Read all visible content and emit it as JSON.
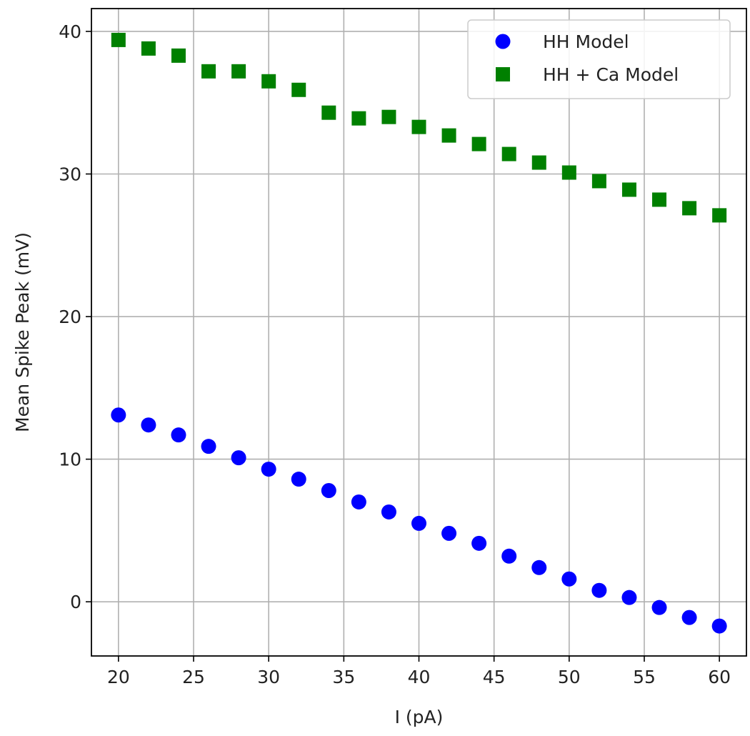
{
  "chart_data": {
    "type": "scatter",
    "title": "",
    "xlabel": "I (pA)",
    "ylabel": "Mean Spike Peak (mV)",
    "xlim": [
      18.2,
      61.8
    ],
    "ylim": [
      -3.8,
      41.6
    ],
    "xticks": [
      20,
      25,
      30,
      35,
      40,
      45,
      50,
      55,
      60
    ],
    "yticks": [
      0,
      10,
      20,
      30,
      40
    ],
    "grid": true,
    "legend_position": "top-right",
    "x": [
      20,
      22,
      24,
      26,
      28,
      30,
      32,
      34,
      36,
      38,
      40,
      42,
      44,
      46,
      48,
      50,
      52,
      54,
      56,
      58,
      60
    ],
    "series": [
      {
        "name": "HH Model",
        "marker": "circle",
        "color": "#0000ff",
        "values": [
          13.1,
          12.4,
          11.7,
          10.9,
          10.1,
          9.3,
          8.6,
          7.8,
          7.0,
          6.3,
          5.5,
          4.8,
          4.1,
          3.2,
          2.4,
          1.6,
          0.8,
          0.3,
          -0.4,
          -1.1,
          -1.7
        ]
      },
      {
        "name": "HH + Ca Model",
        "marker": "square",
        "color": "#008000",
        "values": [
          39.4,
          38.8,
          38.3,
          37.2,
          37.2,
          36.5,
          35.9,
          34.3,
          33.9,
          34.0,
          33.3,
          32.7,
          32.1,
          31.4,
          30.8,
          30.1,
          29.5,
          28.9,
          28.2,
          27.6,
          27.1
        ]
      }
    ]
  }
}
